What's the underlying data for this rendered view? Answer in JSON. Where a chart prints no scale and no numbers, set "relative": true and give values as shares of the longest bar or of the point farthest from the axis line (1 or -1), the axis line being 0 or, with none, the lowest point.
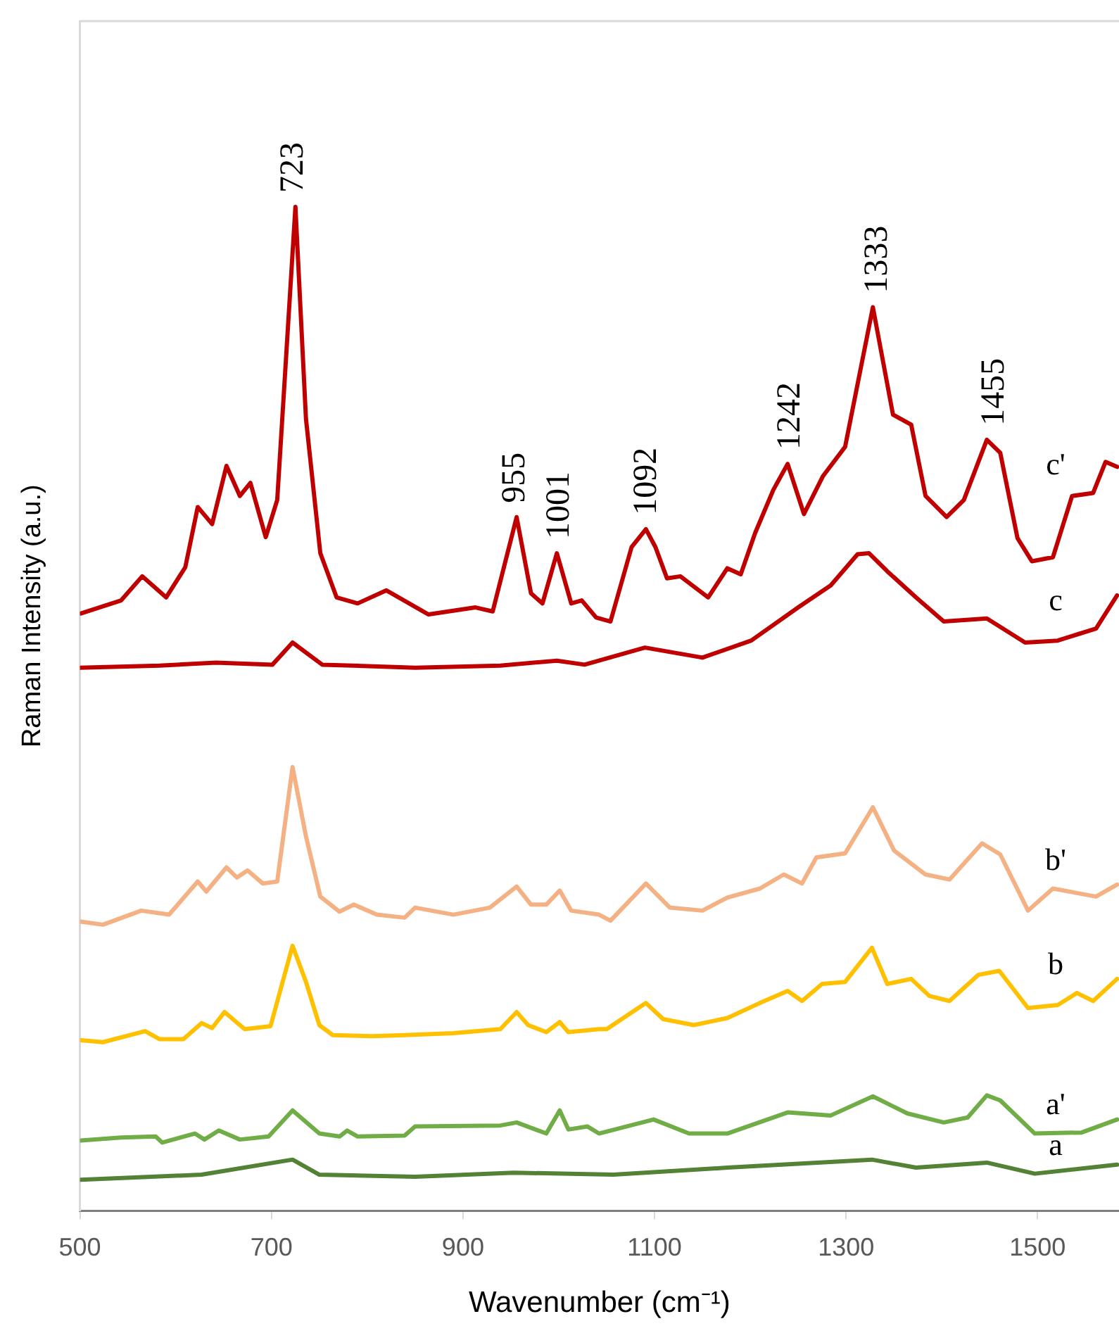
{
  "chart_data": {
    "type": "line",
    "relative": true,
    "xlabel": "Wavenumber (cm⁻¹)",
    "ylabel": "Raman Intensity (a.u.)",
    "xlim": [
      500,
      1585
    ],
    "xticks": [
      500,
      700,
      900,
      1100,
      1300,
      1500
    ],
    "grid": false,
    "legend": false,
    "marker": "none",
    "line_style": "solid",
    "annotations": [
      {
        "text": "723",
        "x": 723,
        "y": 1.0
      },
      {
        "text": "955",
        "x": 955,
        "y": 0.691
      },
      {
        "text": "1001",
        "x": 1001,
        "y": 0.655
      },
      {
        "text": "1092",
        "x": 1092,
        "y": 0.679
      },
      {
        "text": "1242",
        "x": 1242,
        "y": 0.744
      },
      {
        "text": "1333",
        "x": 1333,
        "y": 0.9
      },
      {
        "text": "1455",
        "x": 1455,
        "y": 0.768
      }
    ],
    "series": [
      {
        "name": "c'",
        "color": "#c00000",
        "x": [
          501,
          543,
          565,
          590,
          610,
          623,
          638,
          653,
          667,
          678,
          694,
          706,
          725,
          736,
          751,
          768,
          790,
          820,
          864,
          913,
          931,
          956,
          971,
          983,
          998,
          1013,
          1024,
          1039,
          1054,
          1076,
          1091,
          1101,
          1113,
          1127,
          1156,
          1176,
          1190,
          1205,
          1224,
          1239,
          1256,
          1276,
          1299,
          1328,
          1349,
          1368,
          1383,
          1405,
          1423,
          1447,
          1461,
          1479,
          1494,
          1516,
          1536,
          1558,
          1571,
          1583
        ],
        "values": [
          0.595,
          0.608,
          0.632,
          0.611,
          0.641,
          0.701,
          0.684,
          0.742,
          0.712,
          0.725,
          0.671,
          0.708,
          1.0,
          0.789,
          0.655,
          0.611,
          0.605,
          0.618,
          0.594,
          0.601,
          0.597,
          0.691,
          0.615,
          0.605,
          0.655,
          0.605,
          0.608,
          0.591,
          0.587,
          0.661,
          0.679,
          0.661,
          0.63,
          0.632,
          0.611,
          0.64,
          0.634,
          0.675,
          0.718,
          0.744,
          0.694,
          0.732,
          0.761,
          0.9,
          0.793,
          0.783,
          0.712,
          0.691,
          0.708,
          0.768,
          0.755,
          0.67,
          0.647,
          0.651,
          0.712,
          0.715,
          0.746,
          0.741
        ]
      },
      {
        "name": "c",
        "color": "#c00000",
        "x": [
          500,
          583,
          642,
          701,
          722,
          753,
          850,
          939,
          998,
          1027,
          1090,
          1150,
          1201,
          1250,
          1284,
          1312,
          1324,
          1343,
          1373,
          1402,
          1447,
          1487,
          1521,
          1561,
          1583
        ],
        "values": [
          0.541,
          0.543,
          0.546,
          0.544,
          0.566,
          0.544,
          0.541,
          0.543,
          0.548,
          0.544,
          0.561,
          0.551,
          0.568,
          0.601,
          0.623,
          0.654,
          0.655,
          0.637,
          0.611,
          0.587,
          0.59,
          0.566,
          0.568,
          0.58,
          0.613
        ]
      },
      {
        "name": "b'",
        "color": "#f4b183",
        "x": [
          501,
          524,
          564,
          593,
          623,
          632,
          653,
          664,
          675,
          691,
          706,
          722,
          736,
          751,
          771,
          786,
          810,
          839,
          850,
          890,
          928,
          956,
          971,
          987,
          1001,
          1013,
          1042,
          1054,
          1091,
          1116,
          1150,
          1176,
          1210,
          1235,
          1254,
          1269,
          1299,
          1328,
          1350,
          1383,
          1408,
          1442,
          1461,
          1490,
          1516,
          1561,
          1583
        ],
        "values": [
          0.288,
          0.285,
          0.299,
          0.295,
          0.328,
          0.318,
          0.342,
          0.332,
          0.339,
          0.326,
          0.328,
          0.442,
          0.373,
          0.313,
          0.298,
          0.305,
          0.295,
          0.292,
          0.302,
          0.295,
          0.302,
          0.323,
          0.305,
          0.305,
          0.319,
          0.299,
          0.295,
          0.289,
          0.326,
          0.302,
          0.299,
          0.312,
          0.321,
          0.335,
          0.326,
          0.352,
          0.356,
          0.402,
          0.359,
          0.335,
          0.33,
          0.366,
          0.355,
          0.299,
          0.321,
          0.313,
          0.325
        ]
      },
      {
        "name": "b",
        "color": "#ffc000",
        "x": [
          501,
          524,
          568,
          583,
          608,
          627,
          638,
          651,
          672,
          682,
          699,
          722,
          736,
          750,
          764,
          805,
          839,
          890,
          939,
          956,
          968,
          987,
          1001,
          1010,
          1042,
          1050,
          1091,
          1109,
          1141,
          1176,
          1210,
          1239,
          1254,
          1275,
          1299,
          1327,
          1343,
          1368,
          1387,
          1408,
          1438,
          1460,
          1490,
          1521,
          1541,
          1558,
          1583
        ],
        "values": [
          0.17,
          0.168,
          0.179,
          0.171,
          0.171,
          0.187,
          0.182,
          0.198,
          0.181,
          0.182,
          0.184,
          0.264,
          0.228,
          0.185,
          0.175,
          0.174,
          0.175,
          0.177,
          0.181,
          0.198,
          0.185,
          0.178,
          0.188,
          0.178,
          0.181,
          0.181,
          0.207,
          0.191,
          0.185,
          0.192,
          0.207,
          0.219,
          0.209,
          0.226,
          0.228,
          0.262,
          0.226,
          0.231,
          0.214,
          0.209,
          0.235,
          0.239,
          0.202,
          0.205,
          0.217,
          0.209,
          0.231
        ]
      },
      {
        "name": "a'",
        "color": "#70ad47",
        "x": [
          501,
          543,
          579,
          586,
          620,
          630,
          645,
          667,
          697,
          722,
          750,
          771,
          779,
          790,
          839,
          850,
          939,
          956,
          987,
          1001,
          1010,
          1030,
          1042,
          1099,
          1136,
          1176,
          1239,
          1284,
          1328,
          1364,
          1402,
          1427,
          1447,
          1461,
          1497,
          1546,
          1583
        ],
        "values": [
          0.07,
          0.073,
          0.074,
          0.068,
          0.077,
          0.071,
          0.08,
          0.071,
          0.074,
          0.1,
          0.077,
          0.074,
          0.08,
          0.074,
          0.075,
          0.084,
          0.085,
          0.088,
          0.077,
          0.1,
          0.081,
          0.084,
          0.077,
          0.091,
          0.077,
          0.077,
          0.098,
          0.095,
          0.114,
          0.097,
          0.088,
          0.093,
          0.115,
          0.11,
          0.077,
          0.078,
          0.091
        ]
      },
      {
        "name": "a",
        "color": "#548235",
        "x": [
          501,
          627,
          722,
          750,
          850,
          953,
          1057,
          1176,
          1327,
          1373,
          1447,
          1497,
          1583
        ],
        "values": [
          0.031,
          0.036,
          0.051,
          0.036,
          0.034,
          0.038,
          0.036,
          0.043,
          0.051,
          0.043,
          0.048,
          0.037,
          0.046
        ]
      }
    ]
  }
}
